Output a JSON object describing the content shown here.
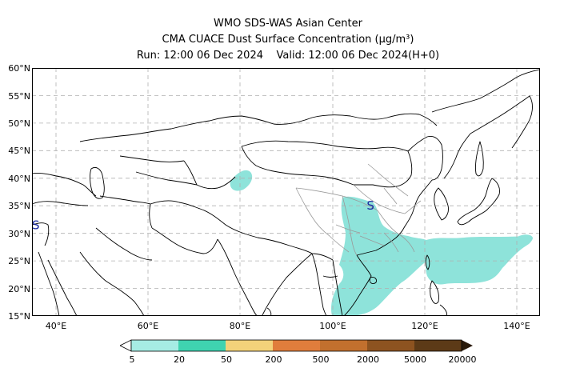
{
  "title": {
    "line1": "WMO SDS-WAS Asian Center",
    "line2": "CMA CUACE Dust Surface Concentration (μg/m³)",
    "line3": "Run: 12:00 06 Dec 2024    Valid: 12:00 06 Dec 2024(H+0)"
  },
  "axes": {
    "lat_labels": [
      "60°N",
      "55°N",
      "50°N",
      "45°N",
      "40°N",
      "35°N",
      "30°N",
      "25°N",
      "20°N",
      "15°N"
    ],
    "lon_labels": [
      "40°E",
      "60°E",
      "80°E",
      "100°E",
      "120°E",
      "140°E"
    ],
    "lat_range": [
      15,
      60
    ],
    "lon_range": [
      35,
      150
    ],
    "grid": true
  },
  "markers": [
    {
      "label": "S",
      "lon": 35.5,
      "lat": 31.5
    },
    {
      "label": "S",
      "lon": 111.5,
      "lat": 35.0
    }
  ],
  "dust_areas": {
    "color": "#8ee3da",
    "level": "5–20 μg/m³",
    "regions": [
      "Tarim Basin (eastern)",
      "Sichuan–Guangxi–Indochina",
      "East China Sea to Pacific east of Japan"
    ]
  },
  "colorbar": {
    "labels": [
      "5",
      "20",
      "50",
      "200",
      "500",
      "2000",
      "5000",
      "20000"
    ],
    "colors": [
      "#a6ece4",
      "#3fd3b0",
      "#f3d27a",
      "#e07d3c",
      "#c2702e",
      "#8d5320",
      "#5c3a17",
      "#2a1a0a"
    ],
    "extend": "both"
  }
}
